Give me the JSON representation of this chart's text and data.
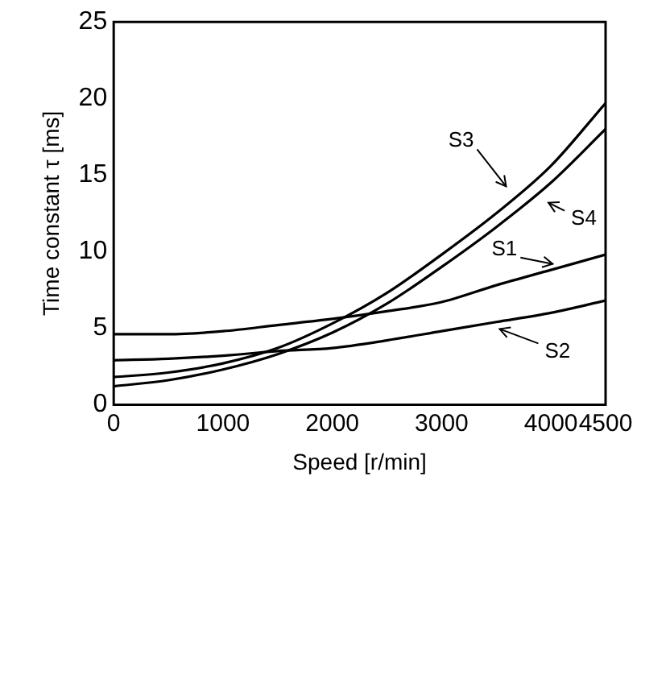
{
  "chart_data": {
    "type": "line",
    "xlabel": "Speed [r/min]",
    "ylabel": "Time constant τ [ms]",
    "x": [
      0,
      500,
      1000,
      1500,
      2000,
      2500,
      3000,
      3500,
      4000,
      4500
    ],
    "series": [
      {
        "color": "#000000",
        "values": [
          4.6,
          4.6,
          4.8,
          5.2,
          5.6,
          6.1,
          6.7,
          7.8,
          8.8,
          9.8
        ]
      },
      {
        "color": "#000000",
        "values": [
          2.9,
          3.0,
          3.2,
          3.5,
          3.7,
          4.2,
          4.8,
          5.4,
          6.0,
          6.8
        ]
      },
      {
        "color": "#000000",
        "values": [
          1.8,
          2.1,
          2.7,
          3.7,
          5.3,
          7.3,
          9.8,
          12.5,
          15.6,
          19.7
        ]
      },
      {
        "color": "#000000",
        "values": [
          1.2,
          1.6,
          2.3,
          3.3,
          4.7,
          6.6,
          9.0,
          11.6,
          14.5,
          18.0
        ]
      }
    ],
    "xlim": [
      0,
      4500
    ],
    "xticks": [
      0,
      1000,
      2000,
      3000,
      4000,
      4500
    ],
    "ylim": [
      0,
      25
    ],
    "yticks": [
      0,
      5,
      10,
      15,
      20,
      25
    ],
    "grid": false,
    "legend": false,
    "marker": "none",
    "line_style": "solid",
    "annotations": [
      {
        "text": "S3",
        "x": 3650,
        "y": 13.8
      },
      {
        "text": "S4",
        "x": 3900,
        "y": 13.5
      },
      {
        "text": "S1",
        "x": 4100,
        "y": 9.0
      },
      {
        "text": "S2",
        "x": 3450,
        "y": 5.2
      }
    ]
  }
}
